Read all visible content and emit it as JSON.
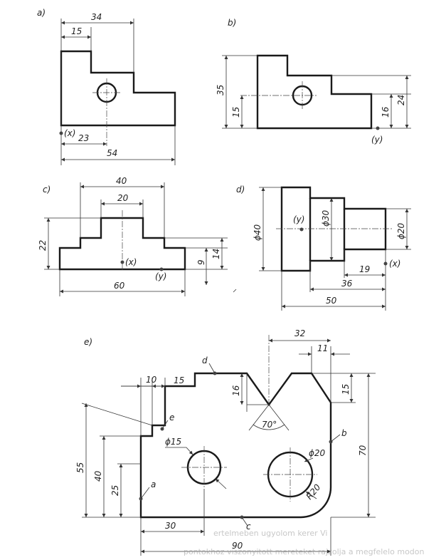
{
  "drawings": {
    "a": {
      "label": "a)",
      "dims": {
        "overall_top": "34",
        "step_width": "15",
        "hole_x": "23",
        "overall_width": "54"
      },
      "origin": "(x)"
    },
    "b": {
      "label": "b)",
      "dims": {
        "height": "35",
        "hole_y": "15",
        "step_low": "16",
        "step_high": "24"
      },
      "origin": "(y)"
    },
    "c": {
      "label": "c)",
      "dims": {
        "top_outer": "40",
        "top_inner": "20",
        "height": "22",
        "step_lower": "9",
        "step_upper": "14",
        "width": "60"
      },
      "origin_x": "(x)",
      "origin_y": "(y)"
    },
    "d": {
      "label": "d)",
      "dims": {
        "dia_large": "ϕ40",
        "dia_mid": "ϕ30",
        "dia_small": "ϕ20",
        "len_small": "19",
        "len_mid": "36",
        "len_total": "50"
      },
      "origin_x": "(x)",
      "origin_y": "(y)"
    },
    "e": {
      "label": "e)",
      "dims": {
        "vee_span": "32",
        "vee_offset": "11",
        "step1": "10",
        "step2": "15",
        "vee_depth": "16",
        "right_step": "15",
        "total_height": "70",
        "left_height": "55",
        "step_height": "40",
        "hole_height": "25",
        "hole_small": "ϕ15",
        "hole_large": "ϕ20",
        "radius": "R20",
        "angle": "70°",
        "hole_x": "30",
        "total_width": "90"
      },
      "points": {
        "a": "a",
        "b": "b",
        "c": "c",
        "d": "d",
        "e": "e"
      }
    }
  },
  "bleed_through": {
    "line1": "ertelmeben ugyolom kerer Vi",
    "line2": "pontokhoz viszonyitott mereteket rajzolja a megfelelo modon"
  }
}
